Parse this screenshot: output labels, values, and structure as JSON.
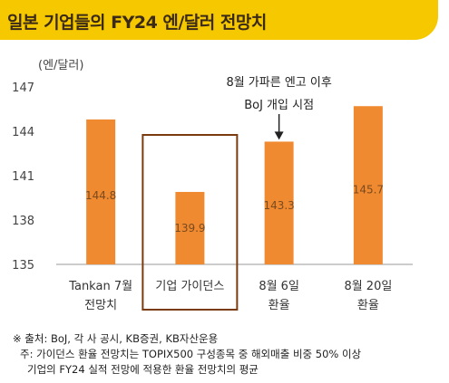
{
  "header": {
    "title": "일본 기업들의 FY24 엔/달러 전망치",
    "accent_color": "#f6c800"
  },
  "chart_data": {
    "type": "bar",
    "unit_label": "(엔/달러)",
    "categories": [
      [
        "Tankan 7월",
        "전망치"
      ],
      [
        "기업 가이던스"
      ],
      [
        "8월 6일",
        "환율"
      ],
      [
        "8월 20일",
        "환율"
      ]
    ],
    "values": [
      144.8,
      139.9,
      143.3,
      145.7
    ],
    "data_labels": [
      "144.8",
      "139.9",
      "143.3",
      "145.7"
    ],
    "ylim": [
      135,
      147
    ],
    "yticks": [
      135,
      138,
      141,
      144,
      147
    ],
    "bar_color": "#f08a30",
    "highlight_index": 1,
    "highlight_color": "#7a3b10",
    "annotation": {
      "lines": [
        "8월 가파른 엔고 이후",
        "BoJ 개입 시점"
      ],
      "target_index": 2
    }
  },
  "notes": {
    "source": "※ 출처: BoJ, 각 사 공시, KB증권, KB자산운용",
    "note_line1": "주: 가이던스 환율 전망치는 TOPIX500 구성종목 중 해외매출 비중 50% 이상",
    "note_line2": "기업의 FY24 실적 전망에 적용한 환율 전망치의 평균"
  }
}
